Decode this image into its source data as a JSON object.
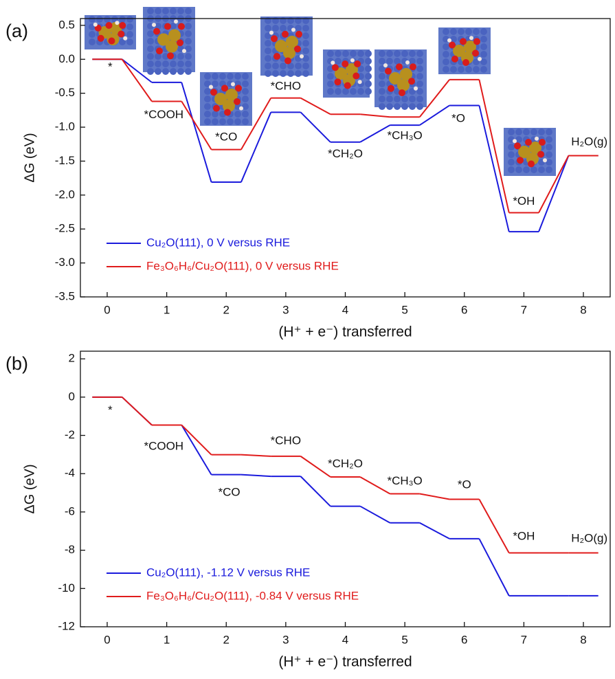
{
  "chart_data": [
    {
      "type": "line",
      "panel_label": "(a)",
      "xlabel": "(H⁺ + e⁻) transferred",
      "ylabel": "ΔG (eV)",
      "x": [
        0,
        1,
        2,
        3,
        4,
        5,
        6,
        7,
        8
      ],
      "step_labels": [
        "*",
        "*COOH",
        "*CO",
        "*CHO",
        "*CH₂O",
        "*CH₃O",
        "*O",
        "*OH",
        "H₂O(g)"
      ],
      "series": [
        {
          "name": "Cu₂O(111), 0 V versus RHE",
          "color": "#1a1adc",
          "values": [
            0,
            -0.34,
            -1.81,
            -0.78,
            -1.22,
            -0.97,
            -0.68,
            -2.54,
            -1.42
          ]
        },
        {
          "name": "Fe₃O₆H₆/Cu₂O(111), 0 V versus RHE",
          "color": "#e01b1b",
          "values": [
            0,
            -0.62,
            -1.33,
            -0.57,
            -0.81,
            -0.85,
            -0.3,
            -2.26,
            -1.42
          ]
        }
      ],
      "xlim": [
        -0.45,
        8.45
      ],
      "xticks": [
        0,
        1,
        2,
        3,
        4,
        5,
        6,
        7,
        8
      ],
      "ylim": [
        -3.5,
        0.6
      ],
      "yticks": [
        -3.5,
        {
          "value": -3,
          "label": "-3.0"
        },
        -2.5,
        {
          "value": -2,
          "label": "-2.0"
        },
        -1.5,
        {
          "value": -1,
          "label": "-1.0"
        },
        -0.5,
        {
          "value": 0,
          "label": "0.0"
        },
        0.5
      ],
      "legend": "lower left"
    },
    {
      "type": "line",
      "panel_label": "(b)",
      "xlabel": "(H⁺ + e⁻) transferred",
      "ylabel": "ΔG (eV)",
      "x": [
        0,
        1,
        2,
        3,
        4,
        5,
        6,
        7,
        8
      ],
      "step_labels": [
        "*",
        "*COOH",
        "*CO",
        "*CHO",
        "*CH₂O",
        "*CH₃O",
        "*O",
        "*OH",
        "H₂O(g)"
      ],
      "series": [
        {
          "name": "Cu₂O(111), -1.12 V versus RHE",
          "color": "#1a1adc",
          "values": [
            0,
            -1.46,
            -4.05,
            -4.14,
            -5.7,
            -6.57,
            -7.4,
            -10.38,
            -10.38
          ]
        },
        {
          "name": "Fe₃O₆H₆/Cu₂O(111), -0.84 V versus RHE",
          "color": "#e01b1b",
          "values": [
            0,
            -1.46,
            -3.01,
            -3.09,
            -4.17,
            -5.05,
            -5.34,
            -8.14,
            -8.14
          ]
        }
      ],
      "xlim": [
        -0.45,
        8.45
      ],
      "xticks": [
        0,
        1,
        2,
        3,
        4,
        5,
        6,
        7,
        8
      ],
      "ylim": [
        -12,
        2.4
      ],
      "yticks": [
        -12,
        -10,
        -8,
        -6,
        -4,
        -2,
        0,
        2
      ],
      "legend": "lower left"
    }
  ]
}
